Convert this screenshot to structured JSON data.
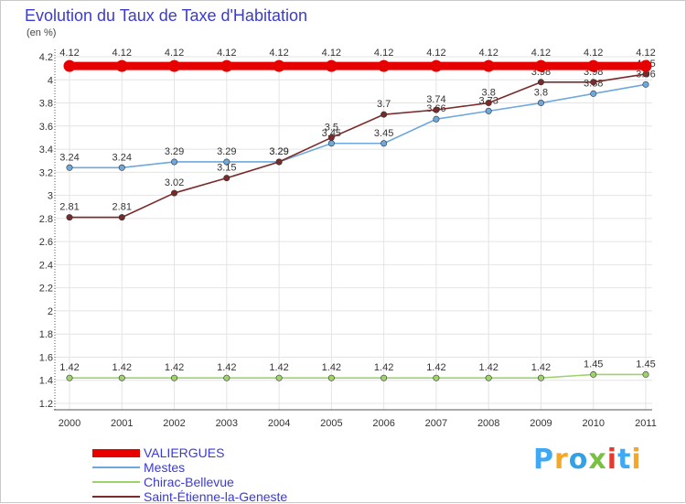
{
  "title": "Evolution du Taux de Taxe d'Habitation",
  "unit_label": "(en %)",
  "brand": {
    "logo_text": "Proxiti",
    "logo_colors": [
      "#3fa9f5",
      "#f7a823",
      "#33a1e3",
      "#7ac143",
      "#e53b2f",
      "#3fa9f5",
      "#f7a823"
    ]
  },
  "colors": {
    "title": "#3a3ad6",
    "grid": "#e4e4e4",
    "axis": "#555555"
  },
  "chart_data": {
    "type": "line",
    "title": "Evolution du Taux de Taxe d'Habitation",
    "ylabel": "(en %)",
    "xlabel": "",
    "x": [
      "2000",
      "2001",
      "2002",
      "2003",
      "2004",
      "2005",
      "2006",
      "2007",
      "2008",
      "2009",
      "2010",
      "2011"
    ],
    "ylim": [
      1.2,
      4.2
    ],
    "yticks": [
      "1.2",
      "1.4",
      "1.6",
      "1.8",
      "2",
      "2.2",
      "2.4",
      "2.6",
      "2.8",
      "3",
      "3.2",
      "3.4",
      "3.6",
      "3.8",
      "4",
      "4.2"
    ],
    "grid": true,
    "legend_position": "bottom-left",
    "series": [
      {
        "name": "VALIERGUES",
        "color": "#e60000",
        "values": [
          4.12,
          4.12,
          4.12,
          4.12,
          4.12,
          4.12,
          4.12,
          4.12,
          4.12,
          4.12,
          4.12,
          4.12
        ],
        "labels": [
          "4.12",
          "4.12",
          "4.12",
          "4.12",
          "4.12",
          "4.12",
          "4.12",
          "4.12",
          "4.12",
          "4.12",
          "4.12",
          "4.12"
        ]
      },
      {
        "name": "Mestes",
        "color": "#6fa8dc",
        "values": [
          3.24,
          3.24,
          3.29,
          3.29,
          3.29,
          3.45,
          3.45,
          3.66,
          3.73,
          3.8,
          3.88,
          3.96
        ],
        "labels": [
          "3.24",
          "3.24",
          "3.29",
          "3.29",
          "3.29",
          "3.45",
          "3.45",
          "3.66",
          "3.73",
          "3.8",
          "3.88",
          "3.96"
        ]
      },
      {
        "name": "Chirac-Bellevue",
        "color": "#9ed36a",
        "values": [
          1.42,
          1.42,
          1.42,
          1.42,
          1.42,
          1.42,
          1.42,
          1.42,
          1.42,
          1.42,
          1.45,
          1.45
        ],
        "labels": [
          "1.42",
          "1.42",
          "1.42",
          "1.42",
          "1.42",
          "1.42",
          "1.42",
          "1.42",
          "1.42",
          "1.42",
          "1.45",
          "1.45"
        ]
      },
      {
        "name": "Saint-Étienne-la-Geneste",
        "color": "#7a2a2a",
        "values": [
          2.81,
          2.81,
          3.02,
          3.15,
          3.29,
          3.5,
          3.7,
          3.74,
          3.8,
          3.98,
          3.98,
          4.05
        ],
        "labels": [
          "2.81",
          "2.81",
          "3.02",
          "3.15",
          "3.29",
          "3.5",
          "3.7",
          "3.74",
          "3.8",
          "3.98",
          "3.98",
          "4.05"
        ]
      }
    ]
  }
}
